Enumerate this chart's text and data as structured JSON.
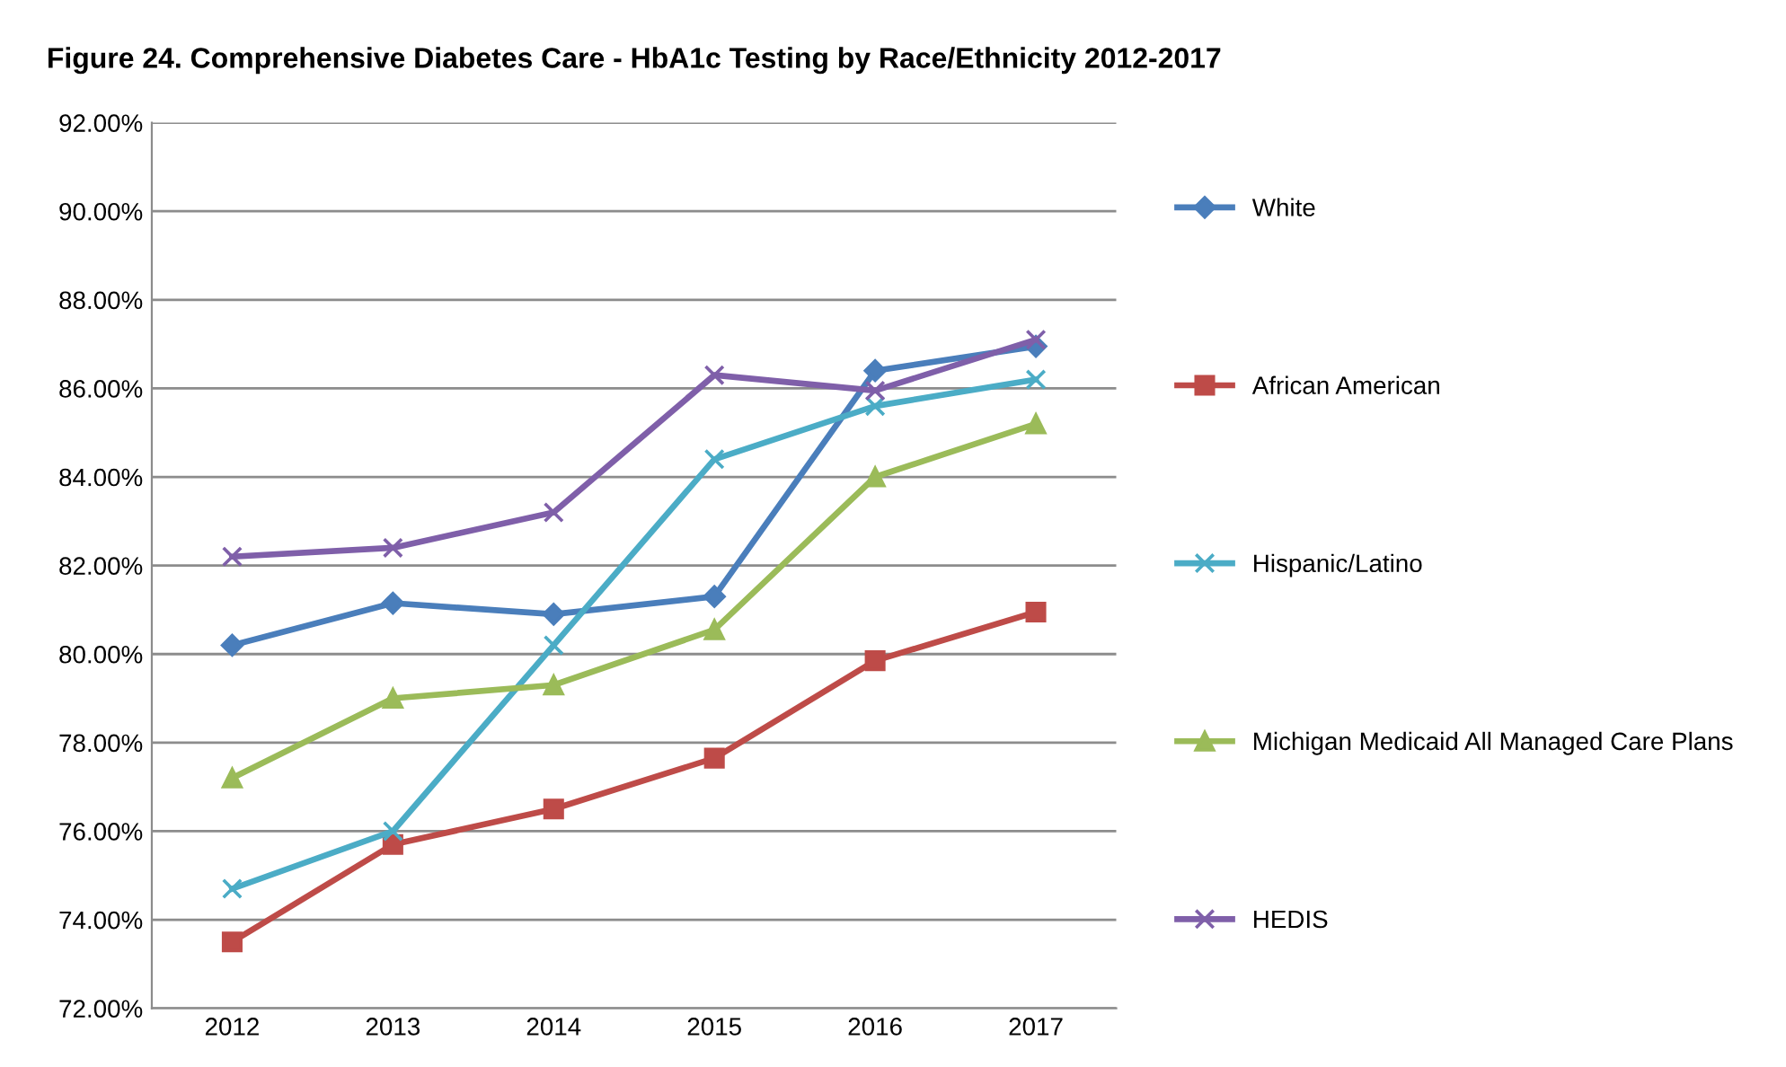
{
  "chart_data": {
    "type": "line",
    "title": "Figure 24. Comprehensive Diabetes Care - HbA1c Testing by Race/Ethnicity 2012-2017",
    "categories": [
      "2012",
      "2013",
      "2014",
      "2015",
      "2016",
      "2017"
    ],
    "series": [
      {
        "name": "White",
        "color": "#4a7ebb",
        "marker": "diamond",
        "values": [
          80.2,
          81.15,
          80.9,
          81.3,
          86.4,
          86.95
        ]
      },
      {
        "name": "African American",
        "color": "#be4b48",
        "marker": "square",
        "values": [
          73.5,
          75.7,
          76.5,
          77.65,
          79.85,
          80.95
        ]
      },
      {
        "name": "Hispanic/Latino",
        "color": "#4bacc6",
        "marker": "cross",
        "values": [
          74.7,
          76.0,
          80.2,
          84.4,
          85.6,
          86.2
        ]
      },
      {
        "name": "Michigan Medicaid All Managed Care Plans",
        "color": "#9bbb59",
        "marker": "triangle",
        "values": [
          77.2,
          79.0,
          79.3,
          80.55,
          84.0,
          85.2
        ]
      },
      {
        "name": "HEDIS",
        "color": "#7f5fa9",
        "marker": "cross",
        "values": [
          82.2,
          82.4,
          83.2,
          86.3,
          85.95,
          87.1
        ]
      }
    ],
    "ylim": [
      72,
      92
    ],
    "yticks": [
      {
        "value": 72,
        "label": "72.00%"
      },
      {
        "value": 74,
        "label": "74.00%"
      },
      {
        "value": 76,
        "label": "76.00%"
      },
      {
        "value": 78,
        "label": "78.00%"
      },
      {
        "value": 80,
        "label": "80.00%"
      },
      {
        "value": 82,
        "label": "82.00%"
      },
      {
        "value": 84,
        "label": "84.00%"
      },
      {
        "value": 86,
        "label": "86.00%"
      },
      {
        "value": 88,
        "label": "88.00%"
      },
      {
        "value": 90,
        "label": "90.00%"
      },
      {
        "value": 92,
        "label": "92.00%"
      }
    ],
    "grid": "y",
    "legend": "right",
    "line_style": "solid"
  }
}
